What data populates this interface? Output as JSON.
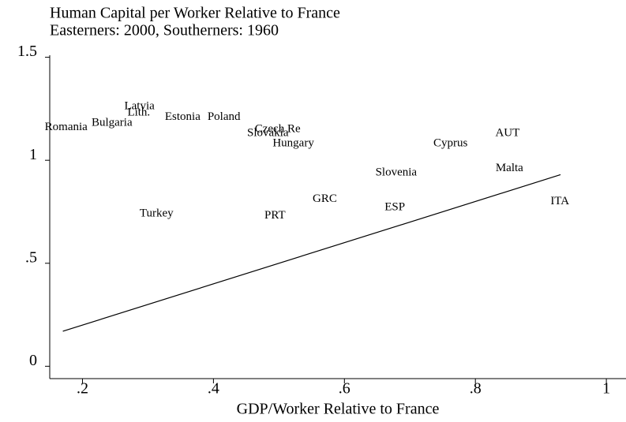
{
  "chart_data": {
    "type": "scatter",
    "title": "Human Capital per Worker Relative to France",
    "subtitle": "Easterners: 2000, Southerners: 1960",
    "x_label": "GDP/Worker Relative to France",
    "labels": [
      "Romania",
      "Bulgaria",
      "Latvia",
      "Lith.",
      "Estonia",
      "Poland",
      "Czech Re",
      "Slovakia",
      "Hungary",
      "Cyprus",
      "AUT",
      "Slovenia",
      "Malta",
      "ITA",
      "GRC",
      "ESP",
      "Turkey",
      "PRT"
    ],
    "x": [
      0.175,
      0.245,
      0.287,
      0.286,
      0.353,
      0.416,
      0.498,
      0.483,
      0.522,
      0.762,
      0.849,
      0.679,
      0.852,
      0.929,
      0.57,
      0.677,
      0.313,
      0.494
    ],
    "values": [
      1.16,
      1.18,
      1.26,
      1.23,
      1.21,
      1.21,
      1.15,
      1.13,
      1.08,
      1.08,
      1.13,
      0.94,
      0.96,
      0.8,
      0.81,
      0.77,
      0.74,
      0.73
    ],
    "line_x": [
      0.17,
      0.93
    ],
    "line_y": [
      0.17,
      0.93
    ],
    "color": "#000000",
    "xlim": [
      0.15,
      1.03
    ],
    "ylim": [
      -0.06,
      1.51
    ],
    "xticks": [
      {
        "value": 0.2,
        "label": ".2"
      },
      {
        "value": 0.4,
        "label": ".4"
      },
      {
        "value": 0.6,
        "label": ".6"
      },
      {
        "value": 0.8,
        "label": ".8"
      },
      1
    ],
    "yticks": [
      0,
      {
        "value": 0.5,
        "label": ".5"
      },
      1,
      1.5
    ]
  }
}
